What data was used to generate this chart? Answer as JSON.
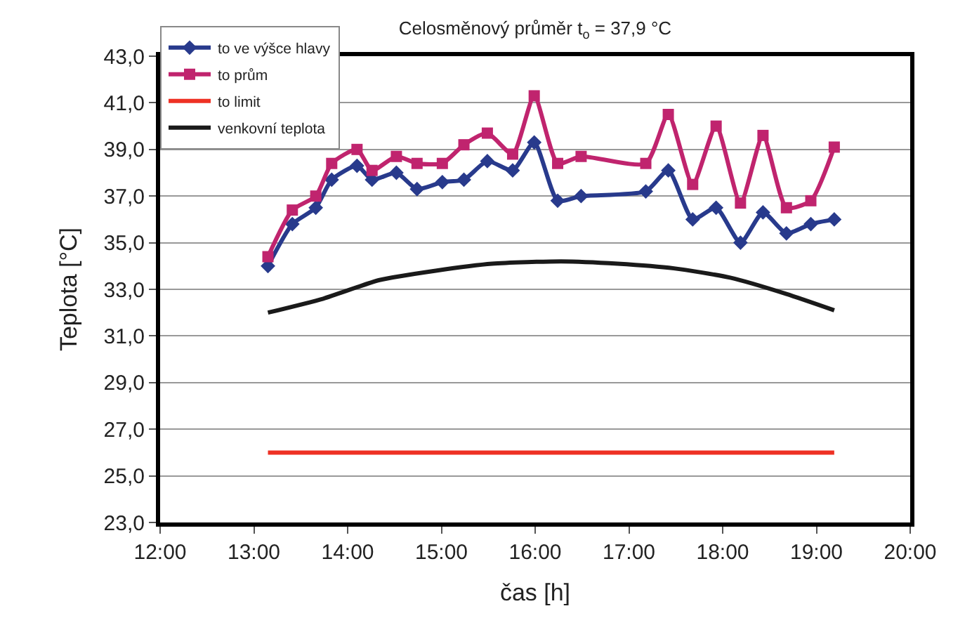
{
  "chart_data": {
    "type": "line",
    "title": "Celosměnový průměr t$_{o}$ = 37,9 °C",
    "xlabel": "čas [h]",
    "ylabel": "Teplota [°C]",
    "xlim": [
      12,
      20
    ],
    "xticks": [
      {
        "value": 12,
        "label": "12:00"
      },
      {
        "value": 13,
        "label": "13:00"
      },
      {
        "value": 14,
        "label": "14:00"
      },
      {
        "value": 15,
        "label": "15:00"
      },
      {
        "value": 16,
        "label": "16:00"
      },
      {
        "value": 17,
        "label": "17:00"
      },
      {
        "value": 18,
        "label": "18:00"
      },
      {
        "value": 19,
        "label": "19:00"
      },
      {
        "value": 20,
        "label": "20:00"
      }
    ],
    "ylim": [
      23,
      43
    ],
    "yticks": [
      {
        "value": 23,
        "label": "23,0"
      },
      {
        "value": 25,
        "label": "25,0"
      },
      {
        "value": 27,
        "label": "27,0"
      },
      {
        "value": 29,
        "label": "29,0"
      },
      {
        "value": 31,
        "label": "31,0"
      },
      {
        "value": 33,
        "label": "33,0"
      },
      {
        "value": 35,
        "label": "35,0"
      },
      {
        "value": 37,
        "label": "37,0"
      },
      {
        "value": 39,
        "label": "39,0"
      },
      {
        "value": 41,
        "label": "41,0"
      },
      {
        "value": 43,
        "label": "43,0"
      }
    ],
    "grid": "y",
    "legend": "top left",
    "series": [
      {
        "name": "to ve výšce hlavy",
        "color": "#283a8c",
        "marker": "diamond",
        "x": [
          13.15,
          13.41,
          13.66,
          13.83,
          14.1,
          14.26,
          14.52,
          14.74,
          15.01,
          15.24,
          15.49,
          15.76,
          15.99,
          16.24,
          16.49,
          17.18,
          17.42,
          17.68,
          17.93,
          18.19,
          18.43,
          18.68,
          18.94,
          19.19
        ],
        "values": [
          34.0,
          35.8,
          36.5,
          37.7,
          38.3,
          37.7,
          38.0,
          37.3,
          37.6,
          37.7,
          38.5,
          38.1,
          39.3,
          36.8,
          37.0,
          37.2,
          38.1,
          36.0,
          36.5,
          35.0,
          36.3,
          35.4,
          35.8,
          36.0
        ]
      },
      {
        "name": "to prům",
        "color": "#c0246e",
        "marker": "square",
        "x": [
          13.15,
          13.41,
          13.66,
          13.83,
          14.1,
          14.26,
          14.52,
          14.74,
          15.01,
          15.24,
          15.49,
          15.76,
          15.99,
          16.24,
          16.49,
          17.18,
          17.42,
          17.68,
          17.93,
          18.19,
          18.43,
          18.68,
          18.94,
          19.19
        ],
        "values": [
          34.4,
          36.4,
          37.0,
          38.4,
          39.0,
          38.1,
          38.7,
          38.4,
          38.4,
          39.2,
          39.7,
          38.8,
          41.3,
          38.4,
          38.7,
          38.4,
          40.5,
          37.5,
          40.0,
          36.7,
          39.6,
          36.5,
          36.8,
          39.1
        ]
      },
      {
        "name": "to limit",
        "color": "#ee3124",
        "marker": "none",
        "x": [
          13.15,
          19.19
        ],
        "values": [
          26.0,
          26.0
        ]
      },
      {
        "name": "venkovní teplota",
        "color": "#1a1a1a",
        "marker": "none",
        "x": [
          13.15,
          13.74,
          14.34,
          14.94,
          15.54,
          16.28,
          16.88,
          17.48,
          18.08,
          18.68,
          19.19
        ],
        "values": [
          32.0,
          32.6,
          33.4,
          33.8,
          34.1,
          34.2,
          34.1,
          33.9,
          33.5,
          32.8,
          32.1
        ]
      }
    ]
  }
}
